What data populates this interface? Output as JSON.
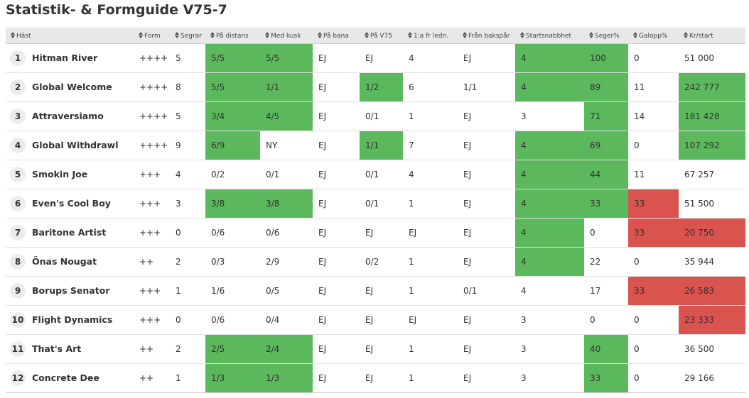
{
  "page": {
    "title": "Statistik- & Formguide V75-7"
  },
  "colors": {
    "good": "#5cb85c",
    "bad": "#d9534f",
    "header_bg": "#e8e8e8"
  },
  "columns": [
    "Häst",
    "Form",
    "Segrar",
    "På distans",
    "Med kusk",
    "På bana",
    "På V75",
    "1:a fr ledn.",
    "Från bakspår",
    "Startsnabbhet",
    "Seger%",
    "Galopp%",
    "Kr/start"
  ],
  "rows": [
    {
      "num": "1",
      "name": "Hitman River",
      "form": "++++",
      "segrar": "5",
      "distans": "5/5",
      "kusk": "5/5",
      "bana": "EJ",
      "v75": "EJ",
      "ledn": "4",
      "bakspar": "EJ",
      "snabb": "4",
      "seger": "100",
      "galopp": "0",
      "krstart": "51 000"
    },
    {
      "num": "2",
      "name": "Global Welcome",
      "form": "++++",
      "segrar": "8",
      "distans": "5/5",
      "kusk": "1/1",
      "bana": "EJ",
      "v75": "1/2",
      "ledn": "6",
      "bakspar": "1/1",
      "snabb": "4",
      "seger": "89",
      "galopp": "11",
      "krstart": "242 777"
    },
    {
      "num": "3",
      "name": "Attraversiamo",
      "form": "++++",
      "segrar": "5",
      "distans": "3/4",
      "kusk": "4/5",
      "bana": "EJ",
      "v75": "0/1",
      "ledn": "1",
      "bakspar": "EJ",
      "snabb": "3",
      "seger": "71",
      "galopp": "14",
      "krstart": "181 428"
    },
    {
      "num": "4",
      "name": "Global Withdrawl",
      "form": "++++",
      "segrar": "9",
      "distans": "6/9",
      "kusk": "NY",
      "bana": "EJ",
      "v75": "1/1",
      "ledn": "7",
      "bakspar": "EJ",
      "snabb": "4",
      "seger": "69",
      "galopp": "0",
      "krstart": "107 292"
    },
    {
      "num": "5",
      "name": "Smokin Joe",
      "form": "+++",
      "segrar": "4",
      "distans": "0/2",
      "kusk": "0/1",
      "bana": "EJ",
      "v75": "0/1",
      "ledn": "4",
      "bakspar": "EJ",
      "snabb": "4",
      "seger": "44",
      "galopp": "11",
      "krstart": "67 257"
    },
    {
      "num": "6",
      "name": "Even's Cool Boy",
      "form": "+++",
      "segrar": "3",
      "distans": "3/8",
      "kusk": "3/8",
      "bana": "EJ",
      "v75": "0/1",
      "ledn": "1",
      "bakspar": "EJ",
      "snabb": "4",
      "seger": "33",
      "galopp": "33",
      "krstart": "51 500"
    },
    {
      "num": "7",
      "name": "Baritone Artist",
      "form": "+++",
      "segrar": "0",
      "distans": "0/6",
      "kusk": "0/6",
      "bana": "EJ",
      "v75": "EJ",
      "ledn": "EJ",
      "bakspar": "EJ",
      "snabb": "4",
      "seger": "0",
      "galopp": "33",
      "krstart": "20 750"
    },
    {
      "num": "8",
      "name": "Önas Nougat",
      "form": "++",
      "segrar": "2",
      "distans": "0/3",
      "kusk": "2/9",
      "bana": "EJ",
      "v75": "0/2",
      "ledn": "1",
      "bakspar": "EJ",
      "snabb": "4",
      "seger": "22",
      "galopp": "0",
      "krstart": "35 944"
    },
    {
      "num": "9",
      "name": "Borups Senator",
      "form": "+++",
      "segrar": "1",
      "distans": "1/6",
      "kusk": "0/5",
      "bana": "EJ",
      "v75": "EJ",
      "ledn": "1",
      "bakspar": "0/1",
      "snabb": "4",
      "seger": "17",
      "galopp": "33",
      "krstart": "26 583"
    },
    {
      "num": "10",
      "name": "Flight Dynamics",
      "form": "+++",
      "segrar": "0",
      "distans": "0/6",
      "kusk": "0/4",
      "bana": "EJ",
      "v75": "EJ",
      "ledn": "EJ",
      "bakspar": "EJ",
      "snabb": "3",
      "seger": "0",
      "galopp": "0",
      "krstart": "23 333"
    },
    {
      "num": "11",
      "name": "That's Art",
      "form": "++",
      "segrar": "2",
      "distans": "2/5",
      "kusk": "2/4",
      "bana": "EJ",
      "v75": "EJ",
      "ledn": "1",
      "bakspar": "EJ",
      "snabb": "3",
      "seger": "40",
      "galopp": "0",
      "krstart": "36 500"
    },
    {
      "num": "12",
      "name": "Concrete Dee",
      "form": "++",
      "segrar": "1",
      "distans": "1/3",
      "kusk": "1/3",
      "bana": "EJ",
      "v75": "EJ",
      "ledn": "1",
      "bakspar": "EJ",
      "snabb": "3",
      "seger": "33",
      "galopp": "0",
      "krstart": "29 166"
    }
  ],
  "highlights": {
    "green": [
      [
        0,
        "distans"
      ],
      [
        0,
        "kusk"
      ],
      [
        0,
        "snabb"
      ],
      [
        0,
        "seger"
      ],
      [
        1,
        "distans"
      ],
      [
        1,
        "kusk"
      ],
      [
        1,
        "v75"
      ],
      [
        1,
        "snabb"
      ],
      [
        1,
        "seger"
      ],
      [
        1,
        "krstart"
      ],
      [
        2,
        "distans"
      ],
      [
        2,
        "kusk"
      ],
      [
        2,
        "seger"
      ],
      [
        2,
        "krstart"
      ],
      [
        3,
        "distans"
      ],
      [
        3,
        "v75"
      ],
      [
        3,
        "snabb"
      ],
      [
        3,
        "seger"
      ],
      [
        3,
        "krstart"
      ],
      [
        4,
        "snabb"
      ],
      [
        4,
        "seger"
      ],
      [
        5,
        "distans"
      ],
      [
        5,
        "kusk"
      ],
      [
        5,
        "snabb"
      ],
      [
        5,
        "seger"
      ],
      [
        6,
        "snabb"
      ],
      [
        7,
        "snabb"
      ],
      [
        10,
        "distans"
      ],
      [
        10,
        "kusk"
      ],
      [
        10,
        "seger"
      ],
      [
        11,
        "distans"
      ],
      [
        11,
        "kusk"
      ],
      [
        11,
        "seger"
      ]
    ],
    "red": [
      [
        5,
        "galopp"
      ],
      [
        6,
        "galopp"
      ],
      [
        6,
        "krstart"
      ],
      [
        8,
        "galopp"
      ],
      [
        8,
        "krstart"
      ],
      [
        9,
        "krstart"
      ]
    ]
  }
}
